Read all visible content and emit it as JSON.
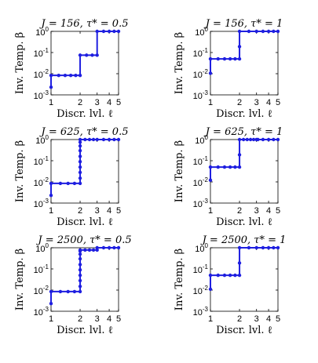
{
  "colors": {
    "line": "#1f1fe0",
    "frame": "#000000",
    "background": "#ffffff"
  },
  "chart_data": [
    {
      "type": "line",
      "scale_y": "log",
      "grid": false,
      "title": "J = 156, τ* = 0.5",
      "xlabel": "Discr. lvl. ℓ",
      "ylabel": "Inv. Temp. β",
      "xlim": [
        1,
        5
      ],
      "ylim": [
        0.001,
        1
      ],
      "xticks": [
        "1",
        "2",
        "3",
        "4",
        "5"
      ],
      "yticks": [
        "10-3",
        "10-2",
        "10-1",
        "100"
      ],
      "series": [
        {
          "x": [
            1,
            1,
            1.2,
            1.4,
            1.6,
            1.8,
            2,
            2,
            2.33,
            2.67,
            3,
            3,
            3.5,
            4,
            4.5,
            5
          ],
          "y": [
            0.0023,
            0.0083,
            0.0083,
            0.0083,
            0.0083,
            0.0083,
            0.0083,
            0.075,
            0.075,
            0.075,
            0.075,
            1,
            1,
            1,
            1,
            1
          ]
        }
      ]
    },
    {
      "type": "line",
      "scale_y": "log",
      "grid": false,
      "title": "J = 156, τ* = 1",
      "xlabel": "Discr. lvl. ℓ",
      "ylabel": "Inv. Temp. β",
      "xlim": [
        1,
        5
      ],
      "ylim": [
        0.001,
        1
      ],
      "xticks": [
        "1",
        "2",
        "3",
        "4",
        "5"
      ],
      "yticks": [
        "10-3",
        "10-2",
        "10-1",
        "100"
      ],
      "series": [
        {
          "x": [
            1,
            1,
            1.2,
            1.4,
            1.6,
            1.8,
            2,
            2,
            2,
            2.5,
            3,
            3.5,
            4,
            4.5,
            5
          ],
          "y": [
            0.0105,
            0.05,
            0.05,
            0.05,
            0.05,
            0.05,
            0.05,
            0.19,
            1,
            1,
            1,
            1,
            1,
            1,
            1
          ]
        }
      ]
    },
    {
      "type": "line",
      "scale_y": "log",
      "grid": false,
      "title": "J = 625, τ* = 0.5",
      "xlabel": "Discr. lvl. ℓ",
      "ylabel": "Inv. Temp. β",
      "xlim": [
        1,
        5
      ],
      "ylim": [
        0.001,
        1
      ],
      "xticks": [
        "1",
        "2",
        "3",
        "4",
        "5"
      ],
      "yticks": [
        "10-3",
        "10-2",
        "10-1",
        "100"
      ],
      "series": [
        {
          "x": [
            1,
            1,
            1.25,
            1.5,
            1.75,
            2,
            2,
            2,
            2,
            2,
            2,
            2,
            2,
            2,
            2,
            2.25,
            2.5,
            2.75,
            3,
            3.5,
            4,
            4.5,
            5
          ],
          "y": [
            0.0023,
            0.0085,
            0.0085,
            0.0085,
            0.0085,
            0.0085,
            0.015,
            0.028,
            0.05,
            0.09,
            0.16,
            0.3,
            0.5,
            0.75,
            1,
            1,
            1,
            1,
            1,
            1,
            1,
            1,
            1
          ]
        }
      ]
    },
    {
      "type": "line",
      "scale_y": "log",
      "grid": false,
      "title": "J = 625, τ* = 1",
      "xlabel": "Discr. lvl. ℓ",
      "ylabel": "Inv. Temp. β",
      "xlim": [
        1,
        5
      ],
      "ylim": [
        0.001,
        1
      ],
      "xticks": [
        "1",
        "2",
        "3",
        "4",
        "5"
      ],
      "yticks": [
        "10-3",
        "10-2",
        "10-1",
        "100"
      ],
      "series": [
        {
          "x": [
            1,
            1,
            1.2,
            1.4,
            1.6,
            1.8,
            2,
            2,
            2,
            2.2,
            2.4,
            2.6,
            2.8,
            3,
            3.1,
            3.5,
            4,
            4.5,
            5
          ],
          "y": [
            0.012,
            0.05,
            0.05,
            0.05,
            0.05,
            0.05,
            0.05,
            0.19,
            1,
            1,
            1,
            1,
            1,
            1,
            1,
            1,
            1,
            1,
            1
          ]
        }
      ]
    },
    {
      "type": "line",
      "scale_y": "log",
      "grid": false,
      "title": "J = 2500, τ* = 0.5",
      "xlabel": "Discr. lvl. ℓ",
      "ylabel": "Inv. Temp. β",
      "xlim": [
        1,
        5
      ],
      "ylim": [
        0.001,
        1
      ],
      "xticks": [
        "1",
        "2",
        "3",
        "4",
        "5"
      ],
      "yticks": [
        "10-3",
        "10-2",
        "10-1",
        "100"
      ],
      "series": [
        {
          "x": [
            1,
            1,
            1.25,
            1.5,
            1.75,
            2,
            2,
            2,
            2,
            2,
            2,
            2,
            2,
            2,
            2,
            2.25,
            2.5,
            2.75,
            3,
            3,
            3.5,
            4,
            4.5,
            5
          ],
          "y": [
            0.0023,
            0.0085,
            0.0085,
            0.0085,
            0.0085,
            0.0085,
            0.015,
            0.028,
            0.05,
            0.09,
            0.16,
            0.3,
            0.5,
            0.7,
            0.78,
            0.78,
            0.78,
            0.78,
            0.78,
            1,
            1,
            1,
            1,
            1
          ]
        }
      ]
    },
    {
      "type": "line",
      "scale_y": "log",
      "grid": false,
      "title": "J = 2500, τ* = 1",
      "xlabel": "Discr. lvl. ℓ",
      "ylabel": "Inv. Temp. β",
      "xlim": [
        1,
        5
      ],
      "ylim": [
        0.001,
        1
      ],
      "xticks": [
        "1",
        "2",
        "3",
        "4",
        "5"
      ],
      "yticks": [
        "10-3",
        "10-2",
        "10-1",
        "100"
      ],
      "series": [
        {
          "x": [
            1,
            1,
            1.2,
            1.4,
            1.6,
            1.8,
            2,
            2,
            2,
            2.5,
            3,
            3.5,
            4,
            4.5,
            5
          ],
          "y": [
            0.011,
            0.05,
            0.05,
            0.05,
            0.05,
            0.05,
            0.05,
            0.19,
            1,
            1,
            1,
            1,
            1,
            1,
            1
          ]
        }
      ]
    }
  ]
}
